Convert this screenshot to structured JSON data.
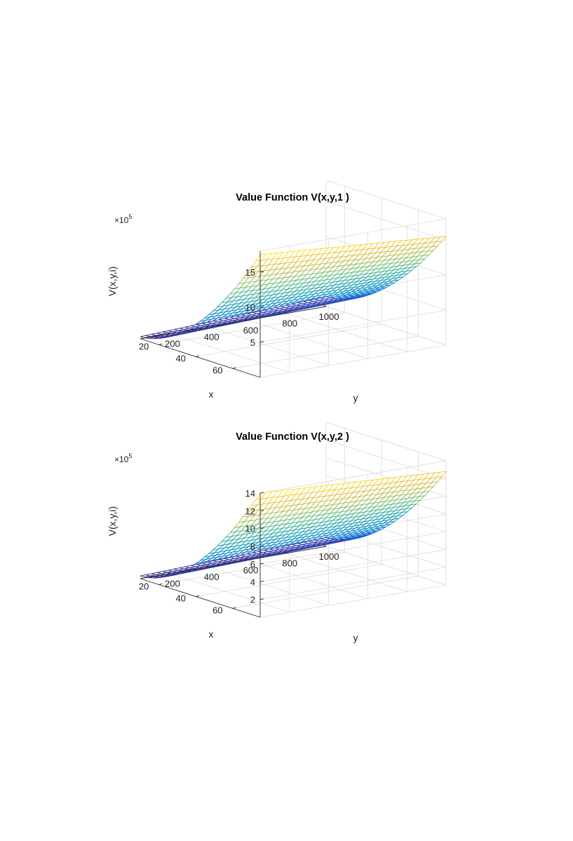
{
  "chart_data": [
    {
      "type": "surface",
      "title": "Value Function V(x,y,1 )",
      "xlabel": "x",
      "ylabel": "y",
      "zlabel": "V(x,y,i)",
      "z_multiplier": "×10",
      "z_multiplier_exp": "5",
      "xlim": [
        10,
        75
      ],
      "ylim": [
        50,
        1000
      ],
      "zlim": [
        0,
        18
      ],
      "x_ticks": [
        "20",
        "40",
        "60"
      ],
      "y_ticks": [
        "200",
        "400",
        "600",
        "800",
        "1000"
      ],
      "z_ticks": [
        "5",
        "10",
        "15"
      ],
      "z_ticks_values": [
        5,
        10,
        15
      ],
      "surface": {
        "x_range": [
          10,
          75
        ],
        "y_range": [
          50,
          1000
        ],
        "z_min": 0.3,
        "z_at_xmax_ymin": 17.5,
        "z_at_xmax_ymax": 15.5,
        "z_at_xmin_ymax": 1.4,
        "grid": [
          28,
          33
        ],
        "colormap": "parula"
      },
      "grid": true
    },
    {
      "type": "surface",
      "title": "Value Function V(x,y,2 )",
      "xlabel": "x",
      "ylabel": "y",
      "zlabel": "V(x,y,i)",
      "z_multiplier": "×10",
      "z_multiplier_exp": "5",
      "xlim": [
        10,
        75
      ],
      "ylim": [
        50,
        1000
      ],
      "zlim": [
        0,
        14
      ],
      "x_ticks": [
        "20",
        "40",
        "60"
      ],
      "y_ticks": [
        "200",
        "400",
        "600",
        "800",
        "1000"
      ],
      "z_ticks": [
        "2",
        "4",
        "6",
        "8",
        "10",
        "12",
        "14"
      ],
      "z_ticks_values": [
        2,
        4,
        6,
        8,
        10,
        12,
        14
      ],
      "surface": {
        "x_range": [
          10,
          75
        ],
        "y_range": [
          50,
          1000
        ],
        "z_min": 0.3,
        "z_at_xmax_ymin": 14,
        "z_at_xmax_ymax": 12.8,
        "z_at_xmin_ymax": 1.0,
        "grid": [
          28,
          33
        ],
        "colormap": "parula"
      },
      "grid": true
    }
  ]
}
